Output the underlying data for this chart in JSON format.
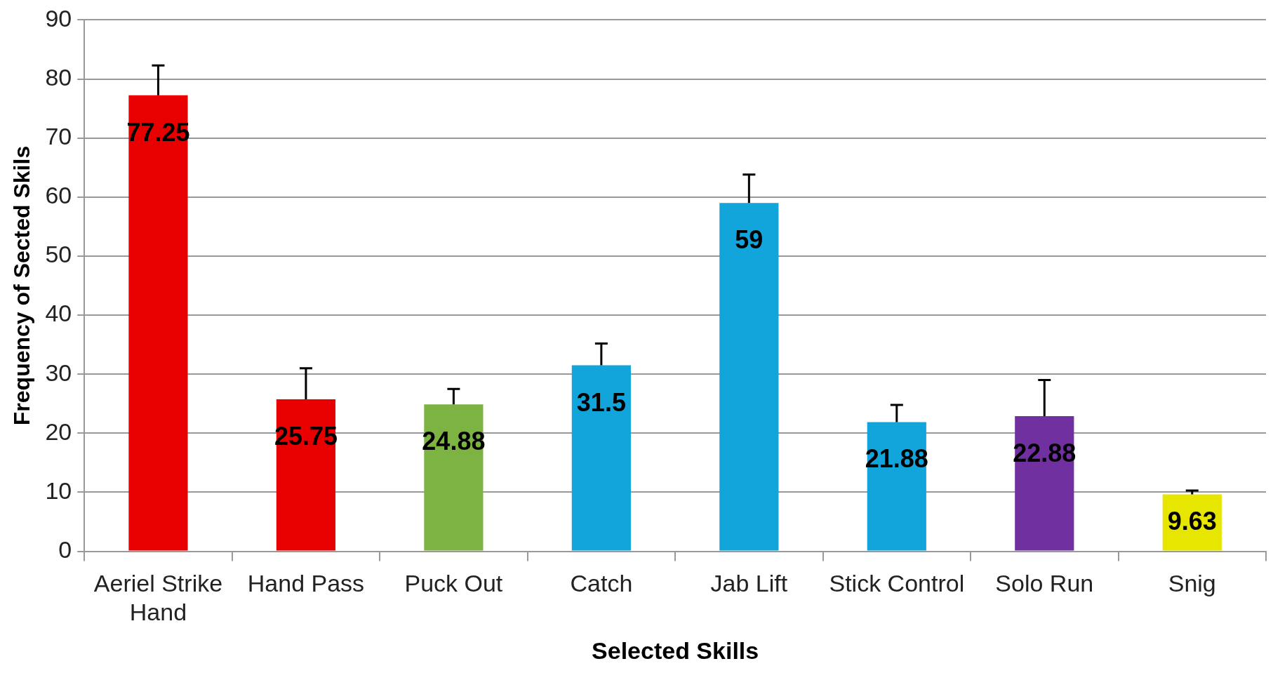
{
  "chart_data": {
    "type": "bar",
    "xlabel": "Selected Skills",
    "ylabel": "Frequency of Sected Skils",
    "categories": [
      "Aeriel Strike Hand",
      "Hand Pass",
      "Puck Out",
      "Catch",
      "Jab Lift",
      "Stick Control",
      "Solo Run",
      "Snig"
    ],
    "values": [
      77.25,
      25.75,
      24.88,
      31.5,
      59,
      21.88,
      22.88,
      9.63
    ],
    "colors": [
      "#e80000",
      "#e80000",
      "#7cb342",
      "#12a5dc",
      "#12a5dc",
      "#12a5dc",
      "#7030a0",
      "#e6e600"
    ],
    "errors": [
      [
        77.25,
        82.3
      ],
      [
        25.75,
        31
      ],
      [
        24.88,
        27.5
      ],
      [
        31.5,
        35.2
      ],
      [
        59,
        63.8
      ],
      [
        21.88,
        24.8
      ],
      [
        22.88,
        29
      ],
      [
        9.63,
        10.3
      ]
    ],
    "ylim": [
      0,
      90
    ],
    "yticks": [
      0,
      10,
      20,
      30,
      40,
      50,
      60,
      70,
      80,
      90
    ],
    "grid": "y",
    "data_labels": true
  }
}
